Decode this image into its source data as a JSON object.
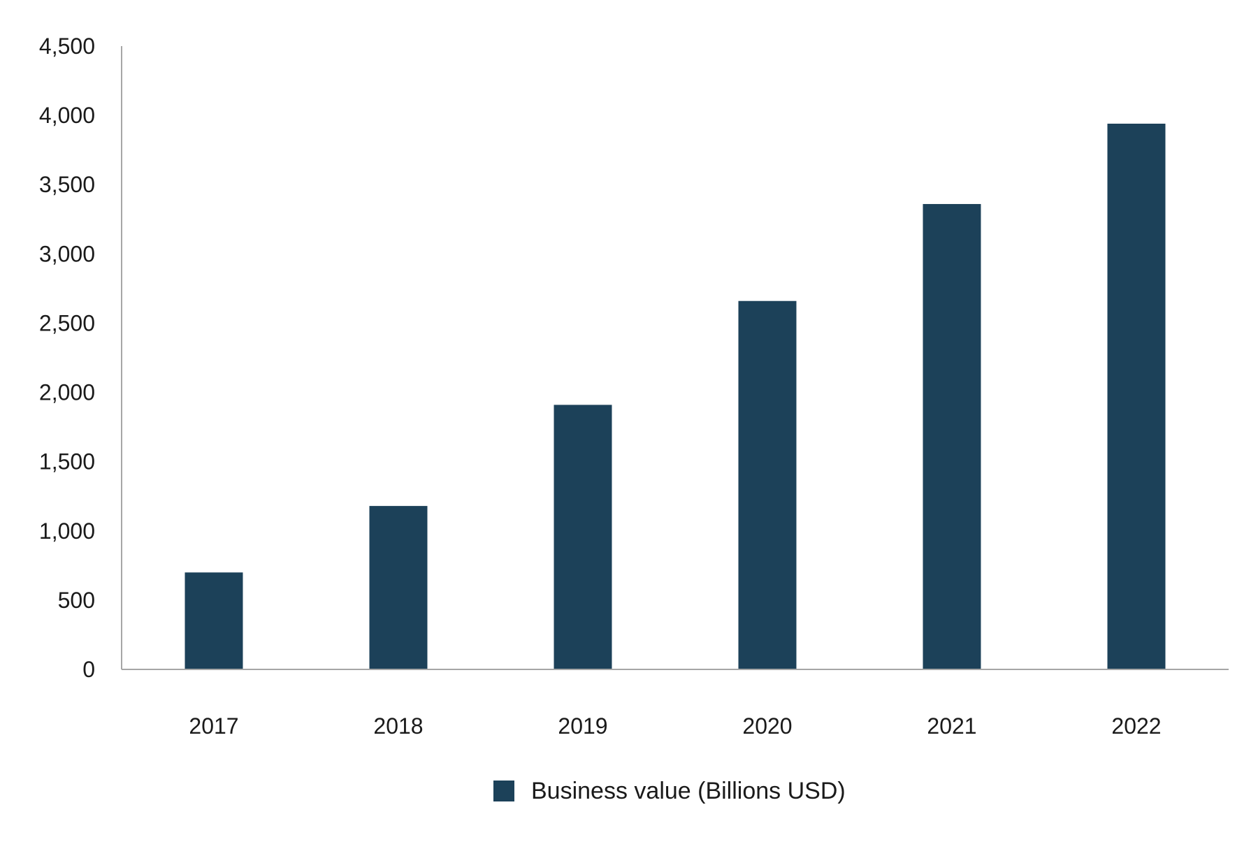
{
  "chart_data": {
    "type": "bar",
    "title": "",
    "xlabel": "",
    "ylabel": "",
    "categories": [
      "2017",
      "2018",
      "2019",
      "2020",
      "2021",
      "2022"
    ],
    "series": [
      {
        "name": "Business value (Billions USD)",
        "values": [
          700,
          1180,
          1910,
          2660,
          3360,
          3940
        ]
      }
    ],
    "ylim": [
      0,
      4500
    ],
    "yticks": [
      0,
      500,
      1000,
      1500,
      2000,
      2500,
      3000,
      3500,
      4000,
      4500
    ],
    "ytick_labels": [
      "0",
      "500",
      "1,000",
      "1,500",
      "2,000",
      "2,500",
      "3,000",
      "3,500",
      "4,000",
      "4,500"
    ],
    "grid": false,
    "legend_position": "bottom-center",
    "colors": {
      "bar": "#1c4159",
      "axis": "#a6a6a6"
    }
  }
}
